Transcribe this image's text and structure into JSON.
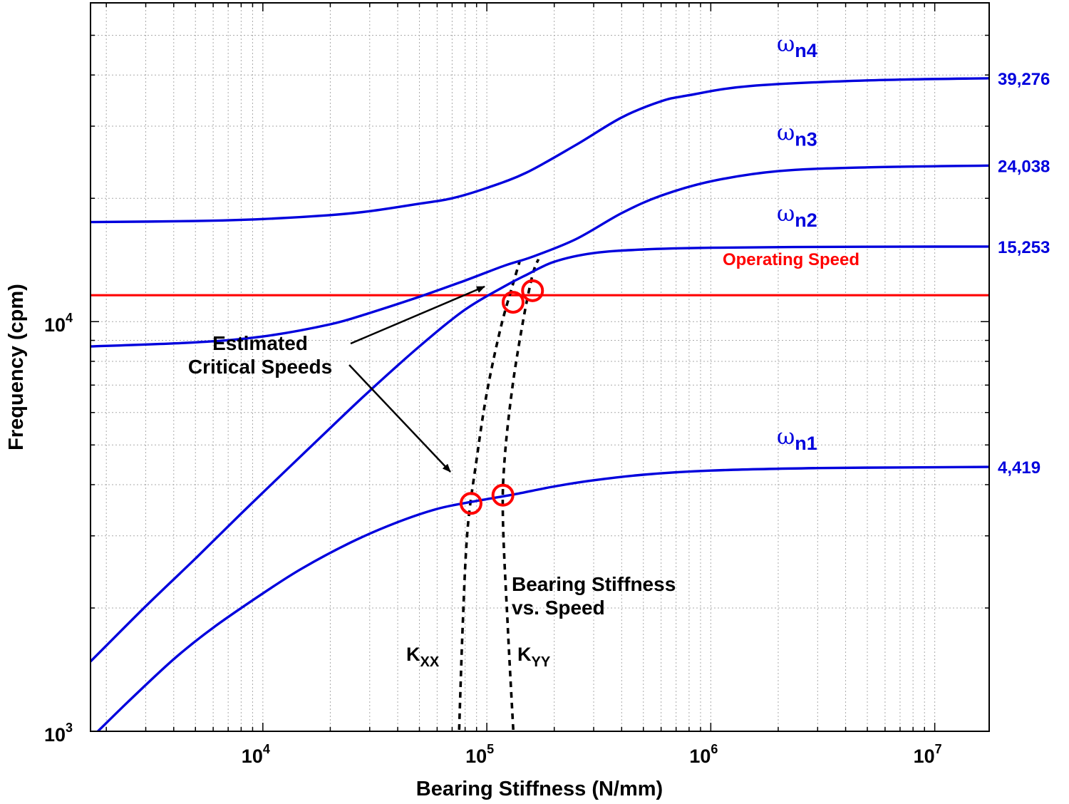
{
  "chart_data": {
    "type": "line",
    "title": "",
    "xlabel": "Bearing Stiffness (N/mm)",
    "ylabel": "Frequency (cpm)",
    "xscale": "log",
    "yscale": "log",
    "xlim": [
      1700,
      17500000
    ],
    "ylim": [
      1000,
      60000
    ],
    "grid": true,
    "xticks": [
      {
        "value": 10000,
        "base": "10",
        "exp": "4"
      },
      {
        "value": 100000,
        "base": "10",
        "exp": "5"
      },
      {
        "value": 1000000,
        "base": "10",
        "exp": "6"
      },
      {
        "value": 10000000,
        "base": "10",
        "exp": "7"
      }
    ],
    "yticks": [
      {
        "value": 1000,
        "base": "10",
        "exp": "3"
      },
      {
        "value": 10000,
        "base": "10",
        "exp": "4"
      }
    ],
    "colors": {
      "modes": "#0000dd",
      "operating": "#ff0000",
      "bearing": "#000000",
      "markers": "#ff0000"
    },
    "series": [
      {
        "mode": "n1",
        "label_sym": "ω",
        "label_sub": "n1",
        "end_value": "4,419",
        "x": [
          1700,
          2500,
          4000,
          6000,
          10000,
          15000,
          25000,
          40000,
          60000,
          85000,
          130000,
          200000,
          300000,
          500000,
          1000000,
          3000000,
          10000000,
          17500000
        ],
        "y": [
          960,
          1180,
          1500,
          1790,
          2170,
          2500,
          2900,
          3240,
          3490,
          3630,
          3780,
          3960,
          4100,
          4230,
          4330,
          4390,
          4410,
          4419
        ]
      },
      {
        "mode": "n2",
        "label_sym": "ω",
        "label_sub": "n2",
        "end_value": "15,253",
        "x": [
          1700,
          3000,
          5000,
          8000,
          12000,
          20000,
          30000,
          50000,
          80000,
          120000,
          150000,
          200000,
          300000,
          500000,
          1000000,
          3000000,
          10000000,
          17500000
        ],
        "y": [
          1480,
          2020,
          2640,
          3400,
          4210,
          5500,
          6780,
          8700,
          10700,
          12200,
          13000,
          14000,
          14700,
          15000,
          15150,
          15220,
          15245,
          15253
        ]
      },
      {
        "mode": "n3",
        "label_sym": "ω",
        "label_sub": "n3",
        "end_value": "24,038",
        "x": [
          1700,
          5000,
          10000,
          20000,
          30000,
          50000,
          80000,
          120000,
          160000,
          250000,
          400000,
          600000,
          1000000,
          2000000,
          5000000,
          17500000
        ],
        "y": [
          8700,
          8900,
          9200,
          9850,
          10500,
          11500,
          12600,
          13700,
          14400,
          15900,
          18400,
          20300,
          22000,
          23300,
          23800,
          24038
        ]
      },
      {
        "mode": "n4",
        "label_sym": "ω",
        "label_sub": "n4",
        "end_value": "39,276",
        "x": [
          1700,
          5000,
          10000,
          20000,
          30000,
          50000,
          70000,
          100000,
          150000,
          250000,
          400000,
          600000,
          800000,
          1500000,
          5000000,
          17500000
        ],
        "y": [
          17500,
          17600,
          17800,
          18200,
          18600,
          19400,
          20000,
          21200,
          23100,
          27000,
          31500,
          34500,
          35700,
          37600,
          38800,
          39276
        ]
      }
    ],
    "operating_speed": {
      "label": "Operating Speed",
      "value": 11600
    },
    "bearing_curves": [
      {
        "name": "Kxx",
        "label_main": "K",
        "label_sub": "XX",
        "x": [
          75000,
          78000,
          82000,
          90000,
          100000,
          115000,
          130000,
          140000
        ],
        "y": [
          950,
          1800,
          3100,
          4600,
          6700,
          9600,
          12200,
          14000
        ]
      },
      {
        "name": "Kyy",
        "label_main": "K",
        "label_sub": "YY",
        "x": [
          132000,
          124000,
          118000,
          120000,
          130000,
          145000,
          160000,
          170000
        ],
        "y": [
          950,
          1800,
          3300,
          4600,
          6900,
          10000,
          13000,
          14200
        ]
      }
    ],
    "critical_points": [
      {
        "x": 85000,
        "y": 3600
      },
      {
        "x": 118000,
        "y": 3770
      },
      {
        "x": 131000,
        "y": 11150
      },
      {
        "x": 160000,
        "y": 11900
      }
    ],
    "annotations": {
      "estimated_line1": "Estimated",
      "estimated_line2": "Critical Speeds",
      "bearing_line1": "Bearing Stiffness",
      "bearing_line2": "vs. Speed"
    }
  }
}
